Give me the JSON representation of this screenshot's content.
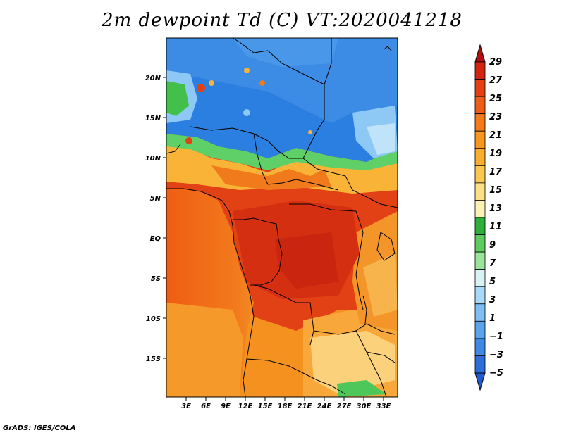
{
  "title": "2m dewpoint Td (C) VT:2020041218",
  "credit": "GrADS: IGES/COLA",
  "map": {
    "lat_labels": [
      "20N",
      "15N",
      "10N",
      "5N",
      "EQ",
      "5S",
      "10S",
      "15S"
    ],
    "lon_labels": [
      "3E",
      "6E",
      "9E",
      "12E",
      "15E",
      "18E",
      "21E",
      "24E",
      "27E",
      "30E",
      "33E"
    ],
    "colors": {
      "dry_blue": "#2a7fe0",
      "light_blue": "#8ec8f5",
      "green": "#43c04c",
      "light_green": "#9ee49a",
      "yellow": "#fbe493",
      "orange": "#f9a12e",
      "dark_orange": "#f26d14",
      "red_orange": "#e7471a",
      "red": "#d02b14"
    }
  },
  "colorbar": {
    "labels": [
      "29",
      "27",
      "25",
      "23",
      "21",
      "19",
      "17",
      "15",
      "13",
      "11",
      "9",
      "7",
      "5",
      "3",
      "1",
      "−1",
      "−3",
      "−5"
    ],
    "colors": [
      "#b2100c",
      "#d2240f",
      "#e53f13",
      "#ef5c15",
      "#f47b18",
      "#f8961d",
      "#fbad2e",
      "#fbc74f",
      "#fce085",
      "#fdf2b6",
      "#2cb03a",
      "#5ccc5c",
      "#9ae39a",
      "#d9f3f4",
      "#a8d9f9",
      "#7cbff5",
      "#5aa4ef",
      "#3f88e4",
      "#2c6fdb",
      "#1f5ad3"
    ]
  }
}
